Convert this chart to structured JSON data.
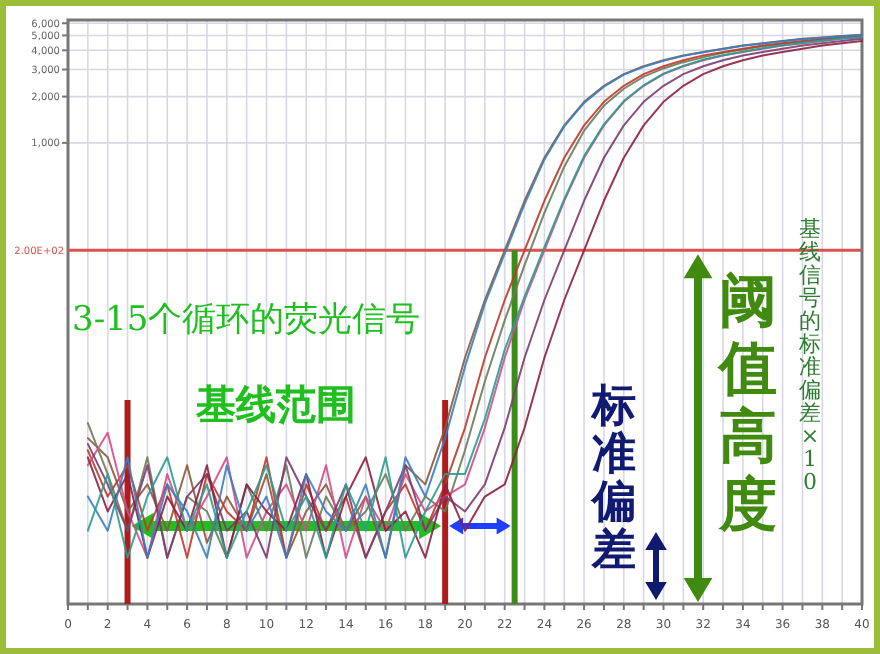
{
  "chart_data": {
    "type": "line",
    "x": [
      1,
      2,
      3,
      4,
      5,
      6,
      7,
      8,
      9,
      10,
      11,
      12,
      13,
      14,
      15,
      16,
      17,
      18,
      19,
      20,
      21,
      22,
      23,
      24,
      25,
      26,
      27,
      28,
      29,
      30,
      31,
      32,
      33,
      34,
      35,
      36,
      37,
      38,
      39,
      40
    ],
    "series": [
      {
        "color": "#8b5a3c",
        "values": [
          12,
          9,
          4,
          6,
          3,
          8,
          2.5,
          5,
          3,
          7,
          2,
          4,
          6,
          3,
          5,
          2,
          8,
          6,
          14,
          40,
          95,
          200,
          420,
          800,
          1300,
          1850,
          2350,
          2800,
          3150,
          3450,
          3700,
          3900,
          4100,
          4300,
          4450,
          4600,
          4750,
          4850,
          4950,
          5050
        ]
      },
      {
        "color": "#6b7b5a",
        "values": [
          15,
          7,
          3,
          9,
          2,
          5,
          4,
          2,
          6,
          3,
          8,
          2,
          5,
          3,
          4,
          7,
          3,
          5,
          4,
          10,
          28,
          70,
          160,
          350,
          700,
          1200,
          1750,
          2250,
          2700,
          3050,
          3350,
          3600,
          3850,
          4050,
          4250,
          4400,
          4550,
          4700,
          4850,
          5000
        ]
      },
      {
        "color": "#c0392b",
        "values": [
          10,
          5,
          8,
          3,
          6,
          2,
          7,
          4,
          3,
          9,
          2,
          6,
          3,
          5,
          2,
          4,
          6,
          3,
          6,
          14,
          40,
          95,
          200,
          420,
          800,
          1300,
          1850,
          2350,
          2800,
          3150,
          3450,
          3700,
          3900,
          4100,
          4300,
          4450,
          4600,
          4750,
          4850,
          4950
        ]
      },
      {
        "color": "#d04f8a",
        "values": [
          8,
          13,
          4,
          2,
          7,
          3,
          5,
          9,
          2,
          4,
          6,
          3,
          8,
          2,
          5,
          3,
          7,
          4,
          5,
          6,
          14,
          40,
          95,
          200,
          420,
          800,
          1300,
          1850,
          2350,
          2800,
          3150,
          3450,
          3700,
          3900,
          4100,
          4300,
          4450,
          4600,
          4750,
          4850
        ]
      },
      {
        "color": "#7d3c6e",
        "values": [
          11,
          6,
          3,
          8,
          2,
          5,
          7,
          3,
          4,
          2,
          9,
          5,
          3,
          6,
          2,
          4,
          8,
          3,
          5,
          4,
          6,
          14,
          40,
          95,
          200,
          420,
          800,
          1300,
          1850,
          2350,
          2800,
          3150,
          3450,
          3700,
          3900,
          4100,
          4300,
          4450,
          4600,
          4750
        ]
      },
      {
        "color": "#8e2040",
        "values": [
          9,
          4,
          7,
          2,
          5,
          3,
          8,
          2,
          6,
          4,
          3,
          7,
          2,
          5,
          9,
          3,
          4,
          2,
          6,
          3,
          5,
          6,
          14,
          40,
          95,
          200,
          420,
          800,
          1300,
          1850,
          2350,
          2800,
          3150,
          3450,
          3700,
          3900,
          4100,
          4300,
          4450,
          4600
        ]
      },
      {
        "color": "#3a7fc1",
        "values": [
          5,
          3,
          9,
          2,
          6,
          4,
          2,
          8,
          3,
          5,
          2,
          7,
          4,
          3,
          6,
          2,
          9,
          5,
          12,
          35,
          90,
          190,
          400,
          780,
          1280,
          1820,
          2320,
          2780,
          3120,
          3420,
          3680,
          3880,
          4080,
          4280,
          4430,
          4580,
          4730,
          4830,
          4930,
          5030
        ]
      },
      {
        "color": "#2a9d8f",
        "values": [
          3,
          7,
          2,
          5,
          9,
          3,
          6,
          2,
          4,
          8,
          3,
          5,
          2,
          6,
          3,
          9,
          2,
          4,
          7,
          7,
          16,
          45,
          100,
          210,
          430,
          820,
          1320,
          1870,
          2370,
          2820,
          3170,
          3470,
          3720,
          3920,
          4120,
          4320,
          4470,
          4620,
          4770,
          4870
        ]
      }
    ],
    "xlim": [
      0,
      40
    ],
    "xticks": [
      0,
      {
        "value": 1,
        "label": null
      },
      2,
      {
        "value": 3,
        "label": null
      },
      4,
      {
        "value": 5,
        "label": null
      },
      6,
      {
        "value": 7,
        "label": null
      },
      8,
      {
        "value": 9,
        "label": null
      },
      10,
      {
        "value": 11,
        "label": null
      },
      12,
      {
        "value": 13,
        "label": null
      },
      14,
      {
        "value": 15,
        "label": null
      },
      16,
      {
        "value": 17,
        "label": null
      },
      18,
      {
        "value": 19,
        "label": null
      },
      20,
      {
        "value": 21,
        "label": null
      },
      22,
      {
        "value": 23,
        "label": null
      },
      24,
      {
        "value": 25,
        "label": null
      },
      26,
      {
        "value": 27,
        "label": null
      },
      28,
      {
        "value": 29,
        "label": null
      },
      30,
      {
        "value": 31,
        "label": null
      },
      32,
      {
        "value": 33,
        "label": null
      },
      34,
      {
        "value": 35,
        "label": null
      },
      36,
      {
        "value": 37,
        "label": null
      },
      38,
      {
        "value": 39,
        "label": null
      },
      40
    ],
    "ylim": [
      1,
      6300
    ],
    "yticks": [
      {
        "value": 1000,
        "label": "1,000"
      },
      {
        "value": 2000,
        "label": "2,000"
      },
      {
        "value": 3000,
        "label": "3,000"
      },
      {
        "value": 4000,
        "label": "4,000"
      },
      {
        "value": 5000,
        "label": "5,000"
      },
      {
        "value": 6000,
        "label": "6,000"
      }
    ],
    "log": true,
    "grid": true,
    "line_style": "solid",
    "marker": "none",
    "ref_lines": [
      {
        "axis": "y",
        "value": 200,
        "label": "2.00E+02",
        "color": "#d9534f"
      },
      {
        "axis": "x",
        "value": 3,
        "color": "#b01c1c"
      },
      {
        "axis": "x",
        "value": 19,
        "color": "#b01c1c"
      },
      {
        "axis": "x",
        "value": 22.5,
        "color": "#3c8c1c"
      }
    ],
    "annotations": [
      "3-15个循环的荧光信号",
      "基线范围",
      "标准偏差",
      "阈值高度",
      "基线信号的标准偏差×10"
    ]
  }
}
